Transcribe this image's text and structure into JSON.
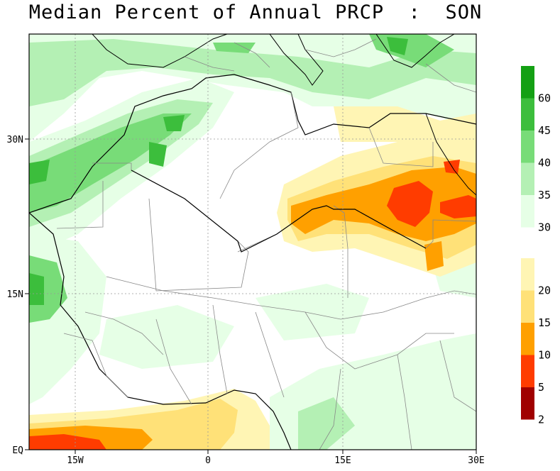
{
  "title": "Median Percent of Annual PRCP  :  SON",
  "axes": {
    "x_ticks": [
      "15W",
      "0",
      "15E",
      "30E"
    ],
    "y_ticks": [
      "EQ",
      "15N",
      "30N"
    ]
  },
  "colorbar": {
    "wet_bins": [
      {
        "label": "60",
        "color": "#14a014"
      },
      {
        "label": "45",
        "color": "#3cbe3c"
      },
      {
        "label": "40",
        "color": "#78dc78"
      },
      {
        "label": "35",
        "color": "#b4f0b4"
      },
      {
        "label": "30",
        "color": "#e6ffe6"
      }
    ],
    "dry_bins": [
      {
        "label": "20",
        "color": "#fff5b4"
      },
      {
        "label": "15",
        "color": "#ffe178"
      },
      {
        "label": "10",
        "color": "#ffa000"
      },
      {
        "label": "5",
        "color": "#ff3c00"
      },
      {
        "label": "2",
        "color": "#a00000"
      }
    ]
  },
  "map": {
    "region": "North and West Africa",
    "lon_range": [
      -22,
      30
    ],
    "lat_range": [
      0,
      40
    ],
    "lon_ticks": [
      -15,
      0,
      15,
      30
    ],
    "lat_ticks": [
      0,
      15,
      30
    ],
    "gridlines": "dotted"
  }
}
